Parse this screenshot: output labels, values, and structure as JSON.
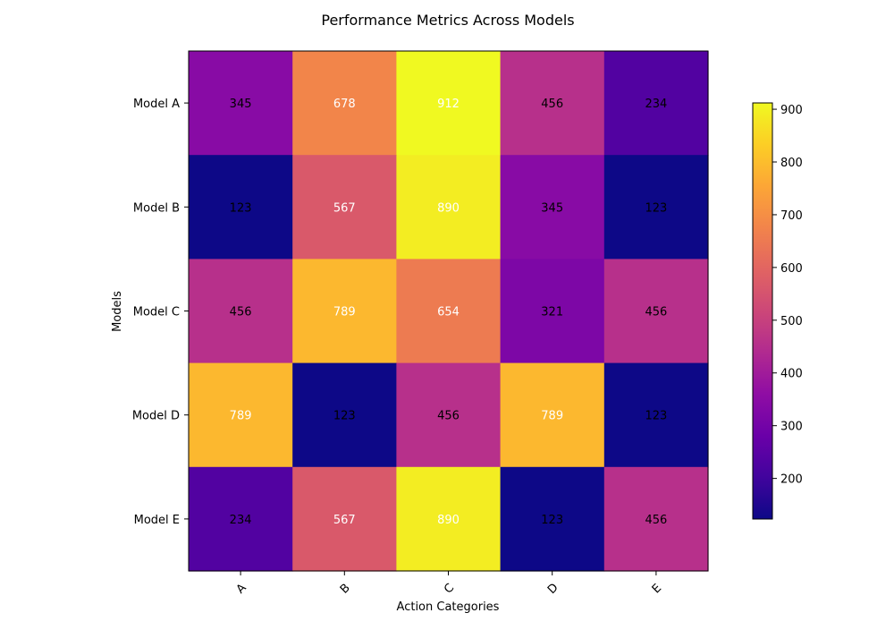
{
  "chart_data": {
    "type": "heatmap",
    "title": "Performance Metrics Across Models",
    "xlabel": "Action Categories",
    "ylabel": "Models",
    "x_categories": [
      "A",
      "B",
      "C",
      "D",
      "E"
    ],
    "y_categories": [
      "Model A",
      "Model B",
      "Model C",
      "Model D",
      "Model E"
    ],
    "values": [
      [
        345,
        678,
        912,
        456,
        234
      ],
      [
        123,
        567,
        890,
        345,
        123
      ],
      [
        456,
        789,
        654,
        321,
        456
      ],
      [
        789,
        123,
        456,
        789,
        123
      ],
      [
        234,
        567,
        890,
        123,
        456
      ]
    ],
    "colormap": "plasma",
    "colorbar": {
      "min": 123,
      "max": 912,
      "ticks": [
        200,
        300,
        400,
        500,
        600,
        700,
        800,
        900
      ],
      "tick_labels": [
        "200",
        "300",
        "400",
        "500",
        "600",
        "700",
        "800",
        "900"
      ]
    },
    "x_tick_rotation": 45,
    "grid": false,
    "text_colors": {
      "light": "#ffffff",
      "dark": "#000000"
    }
  }
}
